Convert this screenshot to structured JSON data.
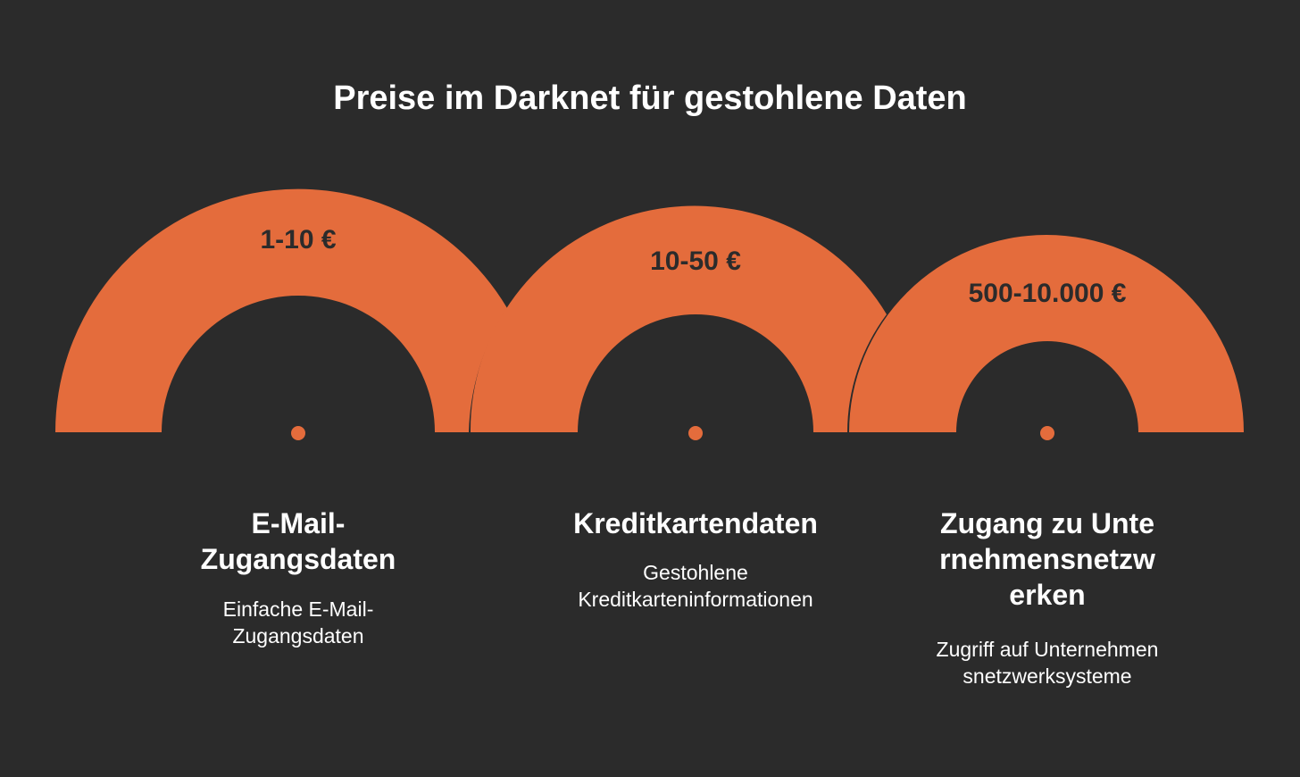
{
  "title": "Preise im Darknet für gestohlene Daten",
  "colors": {
    "background": "#2b2b2b",
    "accent": "#e46c3c",
    "text": "#ffffff"
  },
  "items": [
    {
      "price": "1-10 €",
      "title": "E-Mail-Zugangsdaten",
      "description": "Einfache E-Mail-Zugangsdaten"
    },
    {
      "price": "10-50 €",
      "title": "Kreditkartendaten",
      "description": "Gestohlene Kreditkarteninformationen"
    },
    {
      "price": "500-10.000 €",
      "title": "Zugang zu Unternehmensnetzwerken",
      "description": "Zugriff auf Unternehmensnetzwerksysteme"
    }
  ]
}
